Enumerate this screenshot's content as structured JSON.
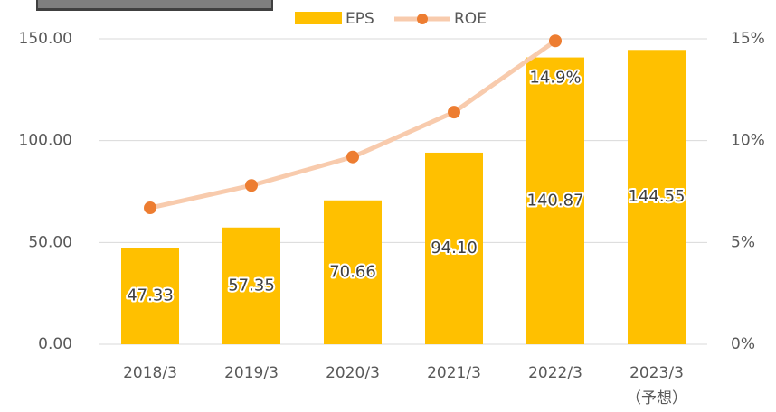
{
  "chart_data": {
    "type": "bar_line",
    "categories": [
      "2018/3",
      "2019/3",
      "2020/3",
      "2021/3",
      "2022/3",
      "2023/3"
    ],
    "category_note": "（予想）",
    "series": [
      {
        "name": "EPS",
        "type": "bar",
        "color": "#FFC000",
        "values": [
          47.33,
          57.35,
          70.66,
          94.1,
          140.87,
          144.55
        ],
        "value_labels": [
          "47.33",
          "57.35",
          "70.66",
          "94.10",
          "140.87",
          "144.55"
        ]
      },
      {
        "name": "ROE",
        "type": "line",
        "axis": "y2",
        "color": "#F8CBAD",
        "marker_color": "#ED7D31",
        "values": [
          6.7,
          7.8,
          9.2,
          11.4,
          14.9,
          null
        ],
        "value_labels": [
          null,
          null,
          null,
          null,
          "14.9%",
          null
        ]
      }
    ],
    "ylim": [
      0,
      150
    ],
    "yticks": [
      {
        "value": 0,
        "label": "0.00"
      },
      {
        "value": 50,
        "label": "50.00"
      },
      {
        "value": 100,
        "label": "100.00"
      },
      {
        "value": 150,
        "label": "150.00"
      }
    ],
    "y2lim": [
      0,
      15
    ],
    "y2ticks": [
      {
        "value": 0,
        "label": "0%"
      },
      {
        "value": 5,
        "label": "5%"
      },
      {
        "value": 10,
        "label": "10%"
      },
      {
        "value": 15,
        "label": "15%"
      }
    ],
    "grid": true,
    "legend": "top"
  }
}
